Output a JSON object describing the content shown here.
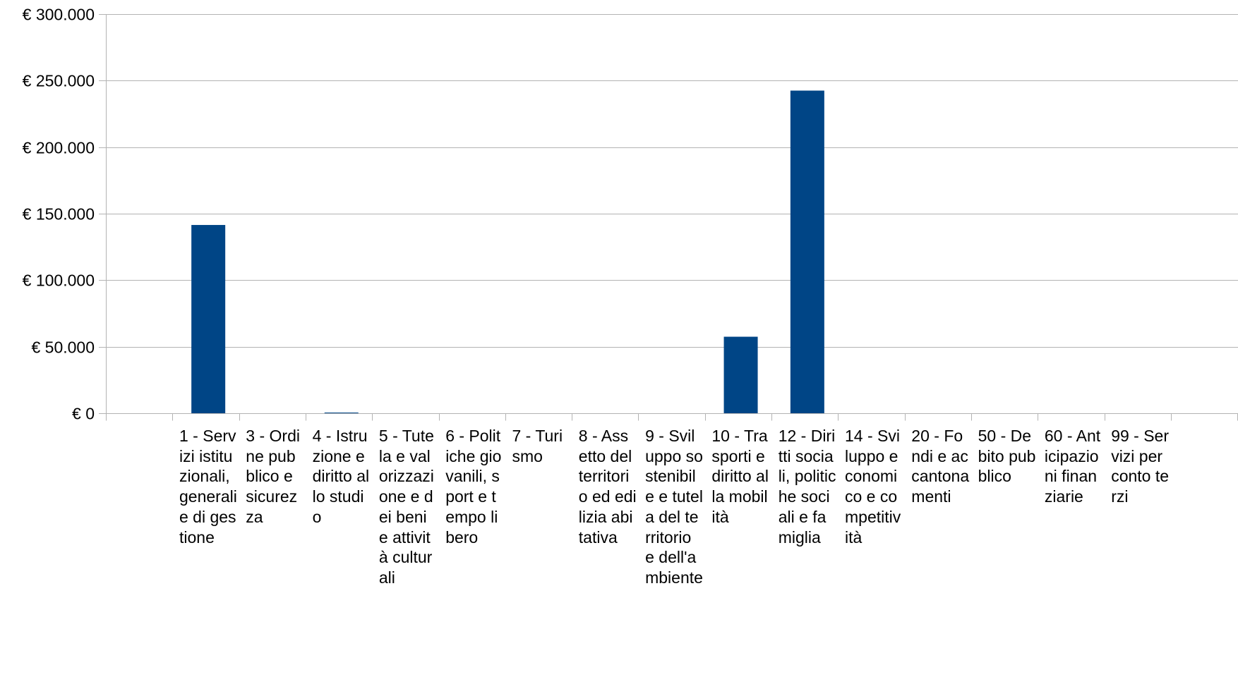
{
  "chart_data": {
    "type": "bar",
    "title": "",
    "xlabel": "",
    "ylabel": "",
    "ylim": [
      0,
      300000
    ],
    "y_ticks": [
      "€ 0",
      "€ 50.000",
      "€ 100.000",
      "€ 150.000",
      "€ 200.000",
      "€ 250.000",
      "€ 300.000"
    ],
    "y_tick_values": [
      0,
      50000,
      100000,
      150000,
      200000,
      250000,
      300000
    ],
    "grid": true,
    "legend": "none",
    "bar_color": "#004586",
    "categories": [
      "1 - Servizi istituzionali, generali e di gestione",
      "3 - Ordine pubblico e sicurezza",
      "4 - Istruzione e diritto allo studio",
      "5 - Tutela e valorizzazione e dei beni e attività culturali",
      "6 - Politiche giovanili, sport e tempo libero",
      "7 - Turismo",
      "8 - Assetto del territorio ed edilizia abitativa",
      "9 - Sviluppo sostenibile e tutela del territorio e dell'ambiente",
      "10 - Trasporti e diritto alla mobilità",
      "12 - Diritti sociali, politiche sociali e famiglia",
      "14 - Sviluppo economico e competitività",
      "20 - Fondi e accantonamenti",
      "50 - Debito pubblico",
      "60 - Anticipazioni finanziarie",
      "99 - Servizi per conto terzi"
    ],
    "values": [
      141500,
      0,
      500,
      0,
      0,
      0,
      0,
      0,
      57500,
      242500,
      0,
      0,
      0,
      0,
      0
    ]
  }
}
